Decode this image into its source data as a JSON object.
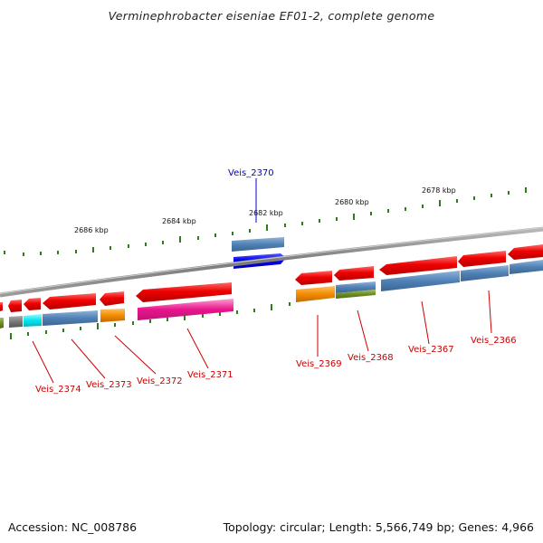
{
  "title": "Verminephrobacter eiseniae EF01-2, complete genome",
  "footer": {
    "accession": "Accession: NC_008786",
    "stats": "Topology: circular; Length: 5,566,749 bp; Genes: 4,966"
  },
  "scale_labels": [
    "2686 kbp",
    "2684 kbp",
    "2682 kbp",
    "2680 kbp",
    "2678 kbp"
  ],
  "gene_labels": [
    {
      "text": "Veis_2370",
      "color": "#0000cc"
    },
    {
      "text": "Veis_2374",
      "color": "#cc0000"
    },
    {
      "text": "Veis_2373",
      "color": "#cc0000"
    },
    {
      "text": "Veis_2372",
      "color": "#cc0000"
    },
    {
      "text": "Veis_2371",
      "color": "#cc0000"
    },
    {
      "text": "Veis_2369",
      "color": "#cc0000"
    },
    {
      "text": "Veis_2368",
      "color": "#cc0000"
    },
    {
      "text": "Veis_2367",
      "color": "#cc0000"
    },
    {
      "text": "Veis_2366",
      "color": "#cc0000"
    }
  ],
  "colors": {
    "backbone": "#8a8a8a",
    "tick": "#2e7d1a",
    "gene_forward": "#0000ee",
    "gene_reverse": "#ee0000",
    "cog_steelblue": "#4f81b5",
    "cog_orange": "#f28c00",
    "cog_pink": "#e8158c",
    "cog_cyan": "#00e5ee",
    "cog_olive": "#6b8e23",
    "cog_gray": "#777777"
  }
}
